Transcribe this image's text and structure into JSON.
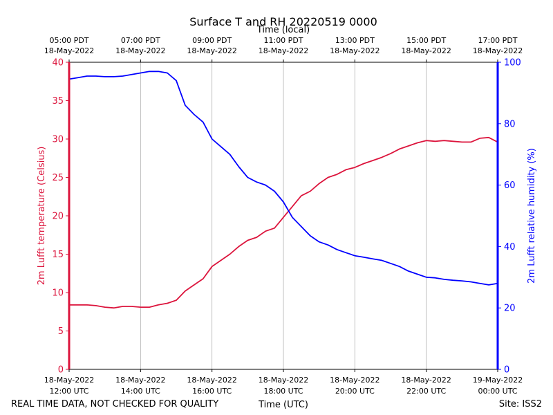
{
  "chart_data": {
    "type": "line",
    "title": "Surface T and RH 20220519 0000",
    "top_axis_label": "Time (local)",
    "xlabel": "Time (UTC)",
    "ylabel_left": "2m Lufft temperature (Celsius)",
    "ylabel_right": "2m Lufft relative humidity (%)",
    "ylim_left": [
      0,
      40
    ],
    "ylim_right": [
      0,
      100
    ],
    "yticks_left": [
      0,
      5,
      10,
      15,
      20,
      25,
      30,
      35,
      40
    ],
    "yticks_right": [
      0,
      20,
      40,
      60,
      80,
      100
    ],
    "xlim_hours_utc": [
      12,
      24
    ],
    "grid": "vertical",
    "bottom_ticks": [
      {
        "hour": 12,
        "date": "18-May-2022",
        "time": "12:00 UTC"
      },
      {
        "hour": 14,
        "date": "18-May-2022",
        "time": "14:00 UTC"
      },
      {
        "hour": 16,
        "date": "18-May-2022",
        "time": "16:00 UTC"
      },
      {
        "hour": 18,
        "date": "18-May-2022",
        "time": "18:00 UTC"
      },
      {
        "hour": 20,
        "date": "18-May-2022",
        "time": "20:00 UTC"
      },
      {
        "hour": 22,
        "date": "18-May-2022",
        "time": "22:00 UTC"
      },
      {
        "hour": 24,
        "date": "19-May-2022",
        "time": "00:00 UTC"
      }
    ],
    "top_ticks": [
      {
        "hour": 12,
        "time": "05:00 PDT",
        "date": "18-May-2022"
      },
      {
        "hour": 14,
        "time": "07:00 PDT",
        "date": "18-May-2022"
      },
      {
        "hour": 16,
        "time": "09:00 PDT",
        "date": "18-May-2022"
      },
      {
        "hour": 18,
        "time": "11:00 PDT",
        "date": "18-May-2022"
      },
      {
        "hour": 20,
        "time": "13:00 PDT",
        "date": "18-May-2022"
      },
      {
        "hour": 22,
        "time": "15:00 PDT",
        "date": "18-May-2022"
      },
      {
        "hour": 24,
        "time": "17:00 PDT",
        "date": "18-May-2022"
      }
    ],
    "series": [
      {
        "name": "2m Lufft temperature",
        "axis": "left",
        "color": "#dc143c",
        "x": [
          12.0,
          12.25,
          12.5,
          12.75,
          13.0,
          13.25,
          13.5,
          13.75,
          14.0,
          14.25,
          14.5,
          14.75,
          15.0,
          15.25,
          15.5,
          15.75,
          16.0,
          16.25,
          16.5,
          16.75,
          17.0,
          17.25,
          17.5,
          17.75,
          18.0,
          18.25,
          18.5,
          18.75,
          19.0,
          19.25,
          19.5,
          19.75,
          20.0,
          20.25,
          20.5,
          20.75,
          21.0,
          21.25,
          21.5,
          21.75,
          22.0,
          22.25,
          22.5,
          22.75,
          23.0,
          23.25,
          23.5,
          23.75,
          24.0
        ],
        "values": [
          8.4,
          8.4,
          8.4,
          8.3,
          8.1,
          8.0,
          8.2,
          8.2,
          8.1,
          8.1,
          8.4,
          8.6,
          9.0,
          10.2,
          11.0,
          11.8,
          13.4,
          14.2,
          15.0,
          16.0,
          16.8,
          17.2,
          18.0,
          18.4,
          19.8,
          21.2,
          22.6,
          23.2,
          24.2,
          25.0,
          25.4,
          26.0,
          26.3,
          26.8,
          27.2,
          27.6,
          28.1,
          28.7,
          29.1,
          29.5,
          29.8,
          29.7,
          29.8,
          29.7,
          29.6,
          29.6,
          30.1,
          30.2,
          29.6
        ]
      },
      {
        "name": "2m Lufft relative humidity",
        "axis": "right",
        "color": "#0000ff",
        "x": [
          12.0,
          12.25,
          12.5,
          12.75,
          13.0,
          13.25,
          13.5,
          13.75,
          14.0,
          14.25,
          14.5,
          14.75,
          15.0,
          15.25,
          15.5,
          15.75,
          16.0,
          16.25,
          16.5,
          16.75,
          17.0,
          17.25,
          17.5,
          17.75,
          18.0,
          18.25,
          18.5,
          18.75,
          19.0,
          19.25,
          19.5,
          19.75,
          20.0,
          20.25,
          20.5,
          20.75,
          21.0,
          21.25,
          21.5,
          21.75,
          22.0,
          22.25,
          22.5,
          22.75,
          23.0,
          23.25,
          23.5,
          23.75,
          24.0
        ],
        "values": [
          94.5,
          95.0,
          95.5,
          95.5,
          95.3,
          95.3,
          95.5,
          96.0,
          96.5,
          97.0,
          97.0,
          96.5,
          94.0,
          86.0,
          83.0,
          80.5,
          75.0,
          72.5,
          70.0,
          66.0,
          62.5,
          61.0,
          60.0,
          58.0,
          54.5,
          49.5,
          46.5,
          43.5,
          41.5,
          40.5,
          39.0,
          38.0,
          37.0,
          36.5,
          36.0,
          35.5,
          34.5,
          33.5,
          32.0,
          31.0,
          30.0,
          29.8,
          29.3,
          29.0,
          28.8,
          28.5,
          28.0,
          27.5,
          28.0
        ]
      }
    ]
  },
  "footer": {
    "disclaimer": "REAL TIME DATA, NOT CHECKED FOR QUALITY",
    "site": "Site: ISS2"
  }
}
